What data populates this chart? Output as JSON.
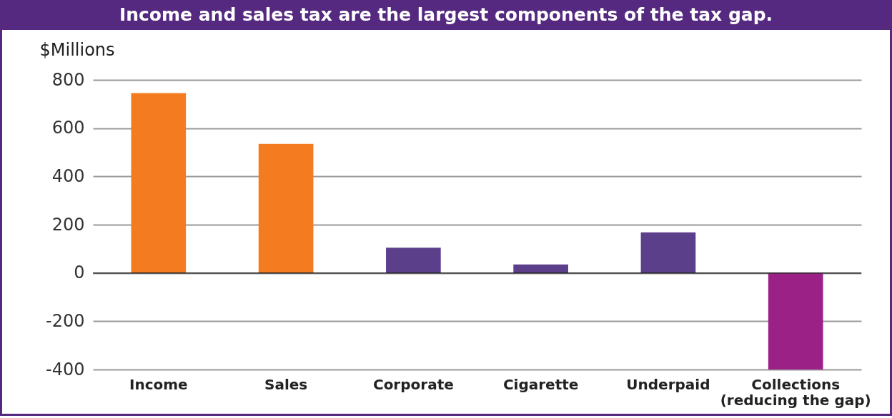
{
  "chart_data": {
    "type": "bar",
    "title": "Income and sales tax are the largest components of the tax gap.",
    "ylabel": "$Millions",
    "categories": [
      "Income",
      "Sales",
      "Corporate",
      "Cigarette",
      "Underpaid",
      "Collections\n(reducing the gap)"
    ],
    "values": [
      745,
      535,
      105,
      35,
      168,
      -400
    ],
    "colors": [
      "#f47b20",
      "#f47b20",
      "#5b3f8a",
      "#5b3f8a",
      "#5b3f8a",
      "#9b2186"
    ],
    "ylim": [
      -400,
      800
    ],
    "yticks": [
      {
        "value": -400,
        "label": "-400"
      },
      {
        "value": -200,
        "label": "-200"
      },
      0,
      200,
      400,
      600,
      800
    ],
    "grid": "y",
    "ref_lines": [
      {
        "axis": "y",
        "value": 0,
        "color": "#222222"
      }
    ]
  }
}
